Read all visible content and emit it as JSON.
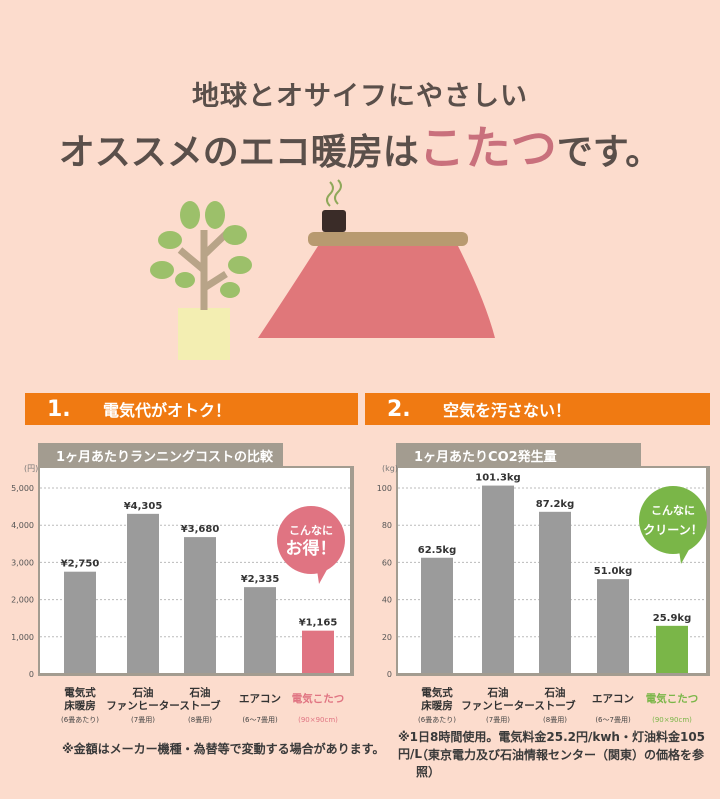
{
  "headline": {
    "line1": "地球とオサイフにやさしい",
    "line2_pre": "オススメのエコ暖房は",
    "line2_highlight": "こたつ",
    "line2_post": "です。"
  },
  "sections": [
    {
      "number": "1.",
      "label": "電気代がオトク！"
    },
    {
      "number": "2.",
      "label": "空気を汚さない！"
    }
  ],
  "colors": {
    "background": "#fcdccd",
    "section_header": "#f07a12",
    "bar_gray": "#9b9b9b",
    "kotatsu_pink": "#e07482",
    "kotatsu_green": "#7ab648",
    "chart_title_bg": "#a39c90"
  },
  "chart_data": [
    {
      "type": "bar",
      "title": "1ヶ月あたりランニングコストの比較",
      "unit": "(円)",
      "categories": [
        [
          "電気式",
          "床暖房",
          "(6畳あたり)"
        ],
        [
          "石油",
          "ファンヒーター",
          "(7畳用)"
        ],
        [
          "石油",
          "ストーブ",
          "(8畳用)"
        ],
        [
          "エアコン",
          "",
          "(6〜7畳用)"
        ],
        [
          "電気こたつ",
          "",
          "(90×90cm)"
        ]
      ],
      "values": [
        2750,
        4305,
        3680,
        2335,
        1165
      ],
      "data_labels": [
        "¥2,750",
        "¥4,305",
        "¥3,680",
        "¥2,335",
        "¥1,165"
      ],
      "yticks": [
        0,
        1000,
        2000,
        3000,
        4000,
        5000
      ],
      "ytick_labels": [
        "0",
        "1,000",
        "2,000",
        "3,000",
        "4,000",
        "5,000"
      ],
      "ylim": [
        0,
        5000
      ],
      "grid": true,
      "highlight_index": 4,
      "callout": [
        "こんなに",
        "お得！"
      ]
    },
    {
      "type": "bar",
      "title": "1ヶ月あたりCO2発生量",
      "unit": "(kg)",
      "categories": [
        [
          "電気式",
          "床暖房",
          "(6畳あたり)"
        ],
        [
          "石油",
          "ファンヒーター",
          "(7畳用)"
        ],
        [
          "石油",
          "ストーブ",
          "(8畳用)"
        ],
        [
          "エアコン",
          "",
          "(6〜7畳用)"
        ],
        [
          "電気こたつ",
          "",
          "(90×90cm)"
        ]
      ],
      "values": [
        62.5,
        101.3,
        87.2,
        51.0,
        25.9
      ],
      "data_labels": [
        "62.5kg",
        "101.3kg",
        "87.2kg",
        "51.0kg",
        "25.9kg"
      ],
      "yticks": [
        0,
        20,
        40,
        60,
        80,
        100
      ],
      "ytick_labels": [
        "0",
        "20",
        "40",
        "60",
        "80",
        "100"
      ],
      "ylim": [
        0,
        100
      ],
      "grid": true,
      "highlight_index": 4,
      "callout": [
        "こんなに",
        "クリーン！"
      ]
    }
  ],
  "notes": {
    "left": "※金額はメーカー機種・為替等で変動する場合があります。",
    "right1": "※1日8時間使用。電気料金25.2円/kwh・灯油料金105円/L",
    "right2": "（東京電力及び石油情報センター（関東）の価格を参照）"
  }
}
